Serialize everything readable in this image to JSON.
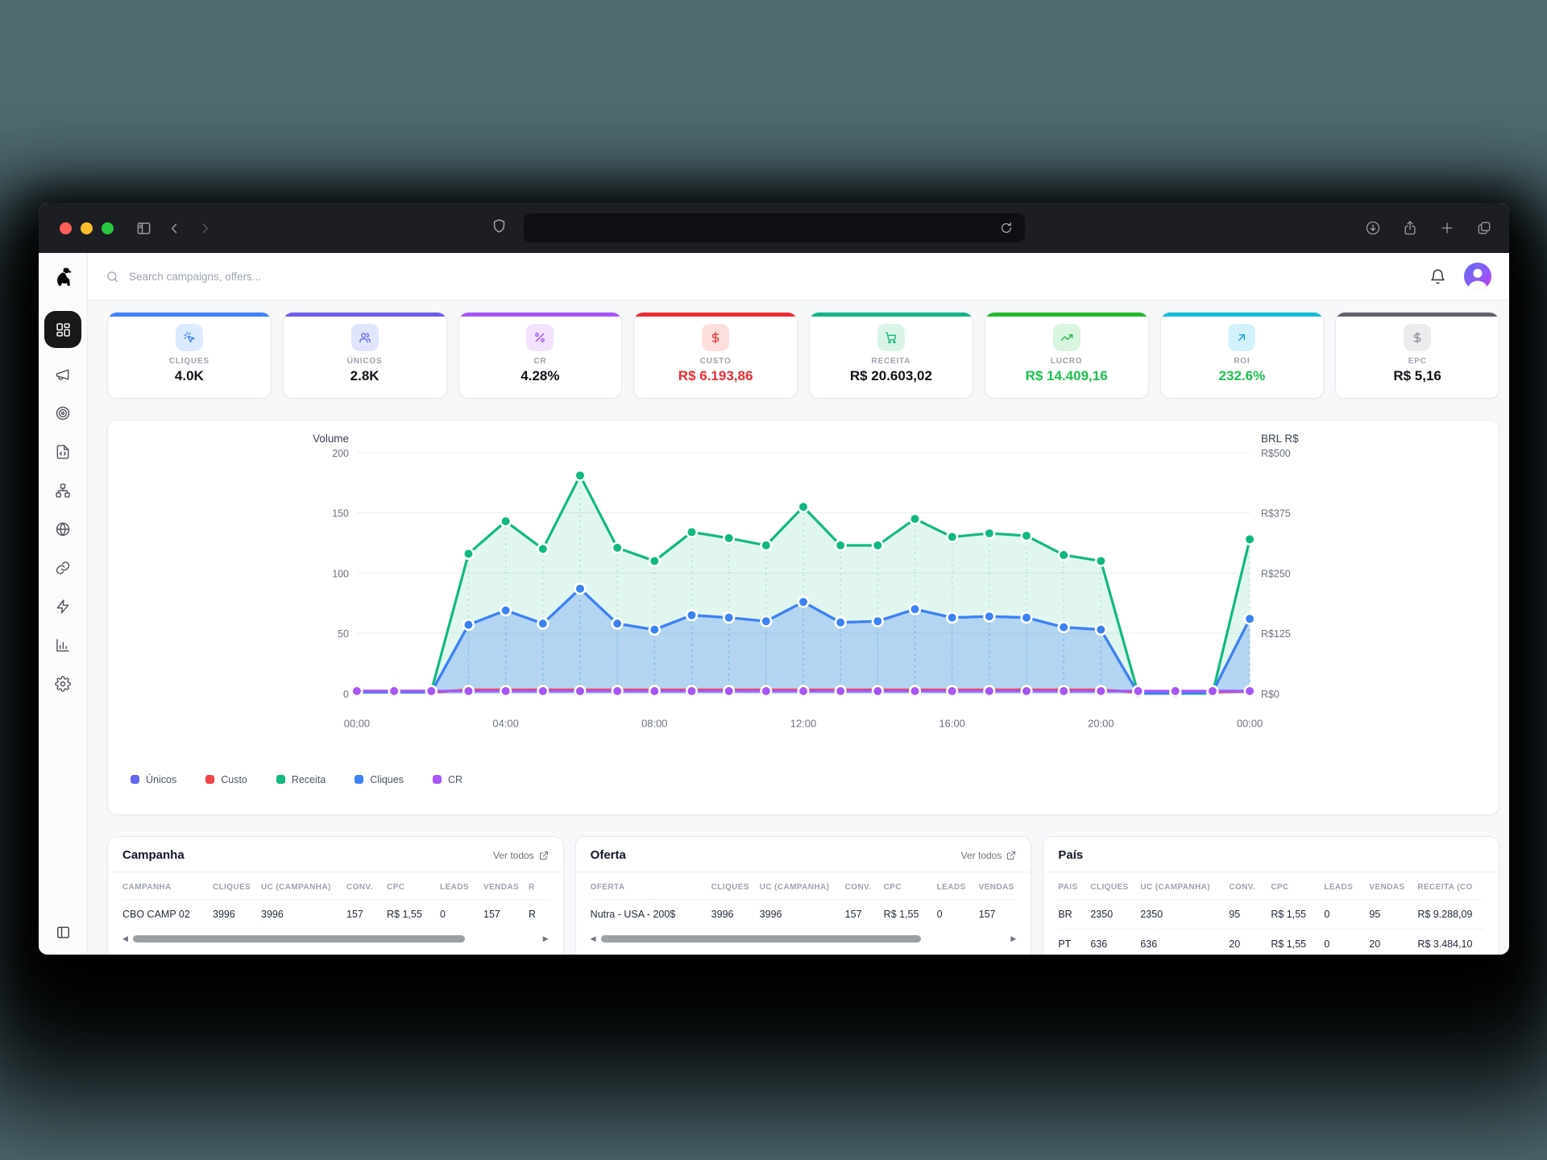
{
  "browser": {
    "traffic_lights": [
      "#ff5f57",
      "#febc2e",
      "#28c840"
    ],
    "buttons_left": [
      "sidebar-toggle-icon",
      "chevron-left-icon",
      "chevron-right-icon"
    ],
    "shield": "shield-icon",
    "url_value": "",
    "reload": "reload-icon",
    "buttons_right": [
      "download-icon",
      "share-icon",
      "plus-icon",
      "tabs-icon"
    ]
  },
  "header": {
    "search_placeholder": "Search campaigns, offers...",
    "bell_icon": "bell-icon"
  },
  "sidebar": {
    "logo_icon": "dog-logo-icon",
    "items": [
      {
        "id": "dashboard",
        "icon": "dashboard-icon",
        "active": true
      },
      {
        "id": "campaigns",
        "icon": "megaphone-icon",
        "active": false
      },
      {
        "id": "offers",
        "icon": "target-icon",
        "active": false
      },
      {
        "id": "landing-pages",
        "icon": "file-code-icon",
        "active": false
      },
      {
        "id": "flows",
        "icon": "sitemap-icon",
        "active": false
      },
      {
        "id": "domains",
        "icon": "globe-icon",
        "active": false
      },
      {
        "id": "links",
        "icon": "link-icon",
        "active": false
      },
      {
        "id": "automation",
        "icon": "zap-icon",
        "active": false
      },
      {
        "id": "reports",
        "icon": "bar-chart-icon",
        "active": false
      },
      {
        "id": "settings",
        "icon": "settings-icon",
        "active": false
      }
    ],
    "footer_icon": "panel-left-icon"
  },
  "kpi_cards": [
    {
      "label": "CLIQUES",
      "value": "4.0K",
      "accent": "#3b82f6",
      "icon": "click-icon",
      "icon_bg": "#dbeafe",
      "icon_color": "#3b82f6",
      "value_color": "#101319"
    },
    {
      "label": "ÚNICOS",
      "value": "2.8K",
      "accent": "#6d5ce8",
      "icon": "users-icon",
      "icon_bg": "#e0e4fc",
      "icon_color": "#6366f1",
      "value_color": "#101319"
    },
    {
      "label": "CR",
      "value": "4.28%",
      "accent": "#a855f7",
      "icon": "percent-icon",
      "icon_bg": "#f2e2fc",
      "icon_color": "#a855f7",
      "value_color": "#101319"
    },
    {
      "label": "CUSTO",
      "value": "R$ 6.193,86",
      "accent": "#ee2b33",
      "icon": "dollar-icon",
      "icon_bg": "#fcdfdd",
      "icon_color": "#ee3b41",
      "value_color": "#ee2b33"
    },
    {
      "label": "RECEITA",
      "value": "R$ 20.603,02",
      "accent": "#10b488",
      "icon": "cart-icon",
      "icon_bg": "#d9f4e6",
      "icon_color": "#12b981",
      "value_color": "#101319"
    },
    {
      "label": "LUCRO",
      "value": "R$ 14.409,16",
      "accent": "#25ba2b",
      "icon": "trend-up-icon",
      "icon_bg": "#d9f4df",
      "icon_color": "#2ab94e",
      "value_color": "#1ec14f"
    },
    {
      "label": "ROI",
      "value": "232.6%",
      "accent": "#12bcd8",
      "icon": "arrow-up-right-icon",
      "icon_bg": "#d3f1fb",
      "icon_color": "#18a0d1",
      "value_color": "#1ec14f"
    },
    {
      "label": "EPC",
      "value": "R$ 5,16",
      "accent": "#616168",
      "icon": "dollar-icon",
      "icon_bg": "#ececee",
      "icon_color": "#8a8f98",
      "value_color": "#101319"
    }
  ],
  "chart_data": {
    "type": "area",
    "x_labels": [
      "00:00",
      "01:00",
      "02:00",
      "03:00",
      "04:00",
      "05:00",
      "06:00",
      "07:00",
      "08:00",
      "09:00",
      "10:00",
      "11:00",
      "12:00",
      "13:00",
      "14:00",
      "15:00",
      "16:00",
      "17:00",
      "18:00",
      "19:00",
      "20:00",
      "21:00",
      "22:00",
      "23:00",
      "00:00"
    ],
    "x_tick_every": 4,
    "left_axis": {
      "title": "Volume",
      "min": 0,
      "max": 200,
      "ticks": [
        "200",
        "150",
        "100",
        "50",
        "0"
      ]
    },
    "right_axis": {
      "title": "BRL R$",
      "ticks": [
        "R$500",
        "R$375",
        "R$250",
        "R$125",
        "R$0"
      ]
    },
    "grid": true,
    "legend_position": "bottom-left",
    "series": [
      {
        "name": "Únicos",
        "color": "#6366f1",
        "fill": "none",
        "dots": true,
        "vlines": false,
        "values": [
          1,
          1,
          1,
          57,
          69,
          58,
          87,
          58,
          53,
          65,
          63,
          60,
          76,
          59,
          60,
          70,
          63,
          64,
          63,
          55,
          53,
          0,
          0,
          1,
          62
        ]
      },
      {
        "name": "Custo",
        "color": "#ef4444",
        "fill": "none",
        "dots": false,
        "vlines": false,
        "values": [
          1,
          1,
          1,
          3,
          3,
          3,
          3,
          3,
          3,
          3,
          3,
          3,
          3,
          3,
          3,
          3,
          3,
          3,
          3,
          3,
          3,
          1,
          1,
          1,
          2
        ]
      },
      {
        "name": "Receita",
        "color": "#10b981",
        "fill": "rgba(16,185,129,0.12)",
        "dots": true,
        "vlines": true,
        "values": [
          2,
          2,
          2,
          116,
          143,
          120,
          181,
          121,
          110,
          134,
          129,
          123,
          155,
          123,
          123,
          145,
          130,
          133,
          131,
          115,
          110,
          0,
          0,
          0,
          128
        ]
      },
      {
        "name": "Cliques",
        "color": "#3b82f6",
        "fill": "rgba(59,130,246,0.28)",
        "dots": true,
        "vlines": true,
        "values": [
          1,
          1,
          1,
          57,
          69,
          58,
          87,
          58,
          53,
          65,
          63,
          60,
          76,
          59,
          60,
          70,
          63,
          64,
          63,
          55,
          53,
          0,
          0,
          1,
          62
        ]
      },
      {
        "name": "CR",
        "color": "#a855f7",
        "fill": "none",
        "dots": true,
        "vlines": false,
        "values": [
          2,
          2,
          2,
          2,
          2,
          2,
          2,
          2,
          2,
          2,
          2,
          2,
          2,
          2,
          2,
          2,
          2,
          2,
          2,
          2,
          2,
          2,
          2,
          2,
          2
        ]
      }
    ]
  },
  "tables": [
    {
      "title": "Campanha",
      "ver_todos": "Ver todos",
      "scrollbar": true,
      "thumb_pct": 82,
      "columns": [
        "CAMPANHA",
        "CLIQUES",
        "UC (CAMPANHA)",
        "CONV.",
        "CPC",
        "LEADS",
        "VENDAS",
        "R"
      ],
      "rows": [
        [
          "CBO CAMP 02",
          "3996",
          "3996",
          "157",
          "R$ 1,55",
          "0",
          "157",
          "R"
        ]
      ]
    },
    {
      "title": "Oferta",
      "ver_todos": "Ver todos",
      "scrollbar": true,
      "thumb_pct": 79,
      "columns": [
        "OFERTA",
        "CLIQUES",
        "UC (CAMPANHA)",
        "CONV.",
        "CPC",
        "LEADS",
        "VENDAS"
      ],
      "rows": [
        [
          "Nutra - USA - 200$",
          "3996",
          "3996",
          "157",
          "R$ 1,55",
          "0",
          "157"
        ]
      ]
    },
    {
      "title": "País",
      "ver_todos": null,
      "scrollbar": false,
      "thumb_pct": 0,
      "columns": [
        "PAÍS",
        "CLIQUES",
        "UC (CAMPANHA)",
        "CONV.",
        "CPC",
        "LEADS",
        "VENDAS",
        "RECEITA (CO"
      ],
      "rows": [
        [
          "BR",
          "2350",
          "2350",
          "95",
          "R$ 1,55",
          "0",
          "95",
          "R$ 9.288,09"
        ],
        [
          "PT",
          "636",
          "636",
          "20",
          "R$ 1,55",
          "0",
          "20",
          "R$ 3.484,10"
        ]
      ]
    }
  ]
}
